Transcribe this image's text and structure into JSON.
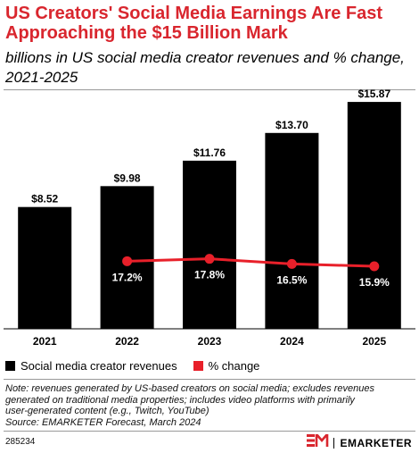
{
  "header": {
    "title": "US Creators' Social Media Earnings Are Fast Approaching the $15 Billion Mark",
    "subtitle": "billions in US social media creator revenues and % change, 2021-2025"
  },
  "chart_data": {
    "type": "bar",
    "categories": [
      "2021",
      "2022",
      "2023",
      "2024",
      "2025"
    ],
    "series": [
      {
        "name": "Social media creator revenues",
        "type": "bar",
        "values": [
          8.52,
          9.98,
          11.76,
          13.7,
          15.87
        ],
        "labels": [
          "$8.52",
          "$9.98",
          "$11.76",
          "$13.70",
          "$15.87"
        ],
        "color": "#000000"
      },
      {
        "name": "% change",
        "type": "line",
        "values": [
          null,
          17.2,
          17.8,
          16.5,
          15.9
        ],
        "labels": [
          "",
          "17.2%",
          "17.8%",
          "16.5%",
          "15.9%"
        ],
        "color": "#e8202a"
      }
    ],
    "ylim": [
      0,
      16.5
    ],
    "line_ylim": [
      0,
      60
    ],
    "grid": false,
    "legend_placement": "bottom-left"
  },
  "legend": {
    "items": [
      {
        "label": "Social media creator revenues",
        "color": "#000000"
      },
      {
        "label": "% change",
        "color": "#e8202a"
      }
    ]
  },
  "footer": {
    "note_lines": [
      "Note: revenues generated by US-based creators on social media; excludes revenues",
      "generated on traditional media properties; includes video platforms with primarily",
      "user-generated content (e.g., Twitch, YouTube)",
      "Source: EMARKETER Forecast, March 2024"
    ],
    "chart_id": "285234",
    "brand_name": "EMARKETER",
    "brand_color": "#d9262e"
  }
}
